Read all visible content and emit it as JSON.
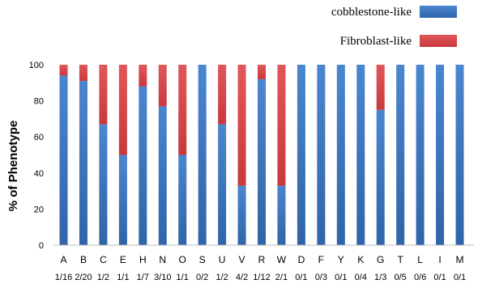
{
  "chart_data": {
    "type": "bar",
    "stacked": true,
    "ylabel": "% of Phenotype",
    "ylim": [
      0,
      100
    ],
    "yticks": [
      0,
      20,
      40,
      60,
      80,
      100
    ],
    "grid": false,
    "legend_position": "top-right",
    "categories": [
      "A",
      "B",
      "C",
      "E",
      "H",
      "N",
      "O",
      "S",
      "U",
      "V",
      "R",
      "W",
      "D",
      "F",
      "Y",
      "K",
      "G",
      "T",
      "L",
      "I",
      "M"
    ],
    "ratios": [
      "1/16",
      "2/20",
      "1/2",
      "1/1",
      "1/7",
      "3/10",
      "1/1",
      "0/2",
      "1/2",
      "4/2",
      "1/12",
      "2/1",
      "0/1",
      "0/3",
      "0/1",
      "0/4",
      "1/3",
      "0/5",
      "0/6",
      "0/1",
      "0/1"
    ],
    "series": [
      {
        "name": "cobblestone-like",
        "color": "#3e7ac4",
        "values": [
          94,
          91,
          67,
          50,
          88,
          77,
          50,
          100,
          67,
          33,
          92,
          33,
          100,
          100,
          100,
          100,
          75,
          100,
          100,
          100,
          100
        ]
      },
      {
        "name": "Fibroblast-like",
        "color": "#d9474a",
        "values": [
          6,
          9,
          33,
          50,
          12,
          23,
          50,
          0,
          33,
          67,
          8,
          67,
          0,
          0,
          0,
          0,
          25,
          0,
          0,
          0,
          0
        ]
      }
    ]
  }
}
